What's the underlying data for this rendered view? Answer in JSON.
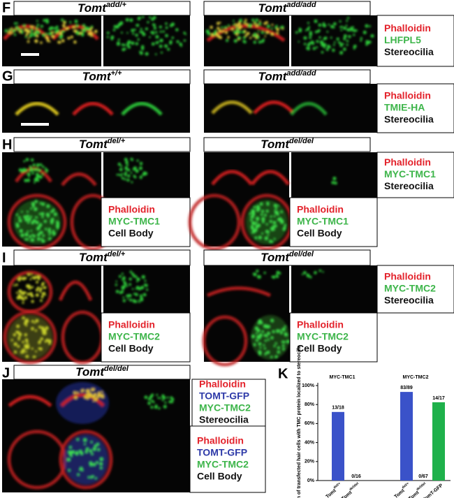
{
  "panels": {
    "F": {
      "label": "F",
      "titles": [
        {
          "base": "Tomt",
          "sup": "add/+"
        },
        {
          "base": "Tomt",
          "sup": "add/add"
        }
      ],
      "legends": [
        {
          "items": [
            "Phalloidin",
            "LHFPL5",
            "Stereocilia"
          ],
          "colors": [
            "#e3222b",
            "#3db54a",
            "#111111"
          ]
        }
      ]
    },
    "G": {
      "label": "G",
      "titles": [
        {
          "base": "Tomt",
          "sup": "+/+"
        },
        {
          "base": "Tomt",
          "sup": "add/add"
        }
      ],
      "legends": [
        {
          "items": [
            "Phalloidin",
            "TMIE-HA",
            "Stereocilia"
          ],
          "colors": [
            "#e3222b",
            "#3db54a",
            "#111111"
          ]
        }
      ]
    },
    "H": {
      "label": "H",
      "titles": [
        {
          "base": "Tomt",
          "sup": "del/+"
        },
        {
          "base": "Tomt",
          "sup": "del/del"
        }
      ],
      "legends": [
        {
          "items": [
            "Phalloidin",
            "MYC-TMC1",
            "Stereocilia"
          ],
          "colors": [
            "#e3222b",
            "#3db54a",
            "#111111"
          ]
        },
        {
          "items": [
            "Phalloidin",
            "MYC-TMC1",
            "Cell Body"
          ],
          "colors": [
            "#e3222b",
            "#3db54a",
            "#111111"
          ]
        },
        {
          "items": [
            "Phalloidin",
            "MYC-TMC1",
            "Cell Body"
          ],
          "colors": [
            "#e3222b",
            "#3db54a",
            "#111111"
          ]
        }
      ]
    },
    "I": {
      "label": "I",
      "titles": [
        {
          "base": "Tomt",
          "sup": "del/+"
        },
        {
          "base": "Tomt",
          "sup": "del/del"
        }
      ],
      "legends": [
        {
          "items": [
            "Phalloidin",
            "MYC-TMC2",
            "Stereocilia"
          ],
          "colors": [
            "#e3222b",
            "#3db54a",
            "#111111"
          ]
        },
        {
          "items": [
            "Phalloidin",
            "MYC-TMC2",
            "Cell Body"
          ],
          "colors": [
            "#e3222b",
            "#3db54a",
            "#111111"
          ]
        },
        {
          "items": [
            "Phalloidin",
            "MYC-TMC2",
            "Cell Body"
          ],
          "colors": [
            "#e3222b",
            "#3db54a",
            "#111111"
          ]
        }
      ]
    },
    "J": {
      "label": "J",
      "titles": [
        {
          "base": "Tomt",
          "sup": "del/del"
        }
      ],
      "legends": [
        {
          "items": [
            "Phalloidin",
            "TOMT-GFP",
            "MYC-TMC2",
            "Stereocilia"
          ],
          "colors": [
            "#e3222b",
            "#2e3aa8",
            "#3db54a",
            "#111111"
          ]
        },
        {
          "items": [
            "Phalloidin",
            "TOMT-GFP",
            "MYC-TMC2",
            "Cell Body"
          ],
          "colors": [
            "#e3222b",
            "#2e3aa8",
            "#3db54a",
            "#111111"
          ]
        }
      ]
    }
  },
  "chart_data": {
    "type": "bar",
    "label": "K",
    "y_label": "Proportion of transfected hair cells with TMC protein localized to stereocilia",
    "group_titles": [
      "MYC-TMC1",
      "MYC-TMC2"
    ],
    "categories": [
      {
        "base": "Tomt",
        "sup": "del/+"
      },
      {
        "base": "Tomt",
        "sup": "del/del"
      },
      {
        "base": "Tomt",
        "sup": "del/+"
      },
      {
        "base": "Tomt",
        "sup": "del/del"
      },
      {
        "base": "Tomt",
        "sup": "del/del",
        "suffix": " + TomT-GFP"
      }
    ],
    "values": [
      72.2,
      0,
      93.3,
      0,
      82.4
    ],
    "value_labels": [
      "13/18",
      "0/16",
      "83/89",
      "0/67",
      "14/17"
    ],
    "colors": [
      "#3a52c9",
      "#3a52c9",
      "#3a52c9",
      "#3a52c9",
      "#1fb14b"
    ],
    "ylim": [
      0,
      100
    ],
    "yticks": [
      {
        "value": 0,
        "label": "0%"
      },
      {
        "value": 20,
        "label": "20%"
      },
      {
        "value": 40,
        "label": "40%"
      },
      {
        "value": 60,
        "label": "60%"
      },
      {
        "value": 80,
        "label": "80%"
      },
      {
        "value": 100,
        "label": "100%"
      }
    ]
  }
}
